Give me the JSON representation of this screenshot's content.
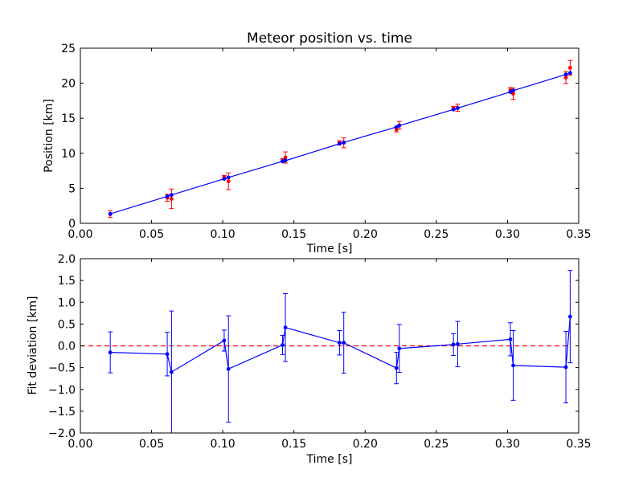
{
  "colors": {
    "data_points": "#ff0000",
    "fit_line": "#0000ff",
    "zero_line": "#ff0000",
    "axes": "#000000"
  },
  "chart_data": [
    {
      "type": "scatter",
      "title": "Meteor position vs. time",
      "xlabel": "Time [s]",
      "ylabel": "Position [km]",
      "xlim": [
        0.0,
        0.35
      ],
      "ylim": [
        0,
        25
      ],
      "xticks": [
        "0.00",
        "0.05",
        "0.10",
        "0.15",
        "0.20",
        "0.25",
        "0.30",
        "0.35"
      ],
      "yticks": [
        "0",
        "5",
        "10",
        "15",
        "20",
        "25"
      ],
      "grid": false,
      "series": [
        {
          "style": "points-with-errorbars",
          "points": [
            {
              "x": 0.021,
              "y": 1.3,
              "err": 0.47
            },
            {
              "x": 0.061,
              "y": 3.65,
              "err": 0.5
            },
            {
              "x": 0.064,
              "y": 3.5,
              "err": 1.4
            },
            {
              "x": 0.101,
              "y": 6.6,
              "err": 0.24
            },
            {
              "x": 0.104,
              "y": 6.0,
              "err": 1.2
            },
            {
              "x": 0.142,
              "y": 9.0,
              "err": 0.22
            },
            {
              "x": 0.144,
              "y": 9.4,
              "err": 0.8
            },
            {
              "x": 0.182,
              "y": 11.5,
              "err": 0.3
            },
            {
              "x": 0.185,
              "y": 11.5,
              "err": 0.7
            },
            {
              "x": 0.222,
              "y": 13.4,
              "err": 0.35
            },
            {
              "x": 0.224,
              "y": 14.0,
              "err": 0.55
            },
            {
              "x": 0.262,
              "y": 16.45,
              "err": 0.25
            },
            {
              "x": 0.265,
              "y": 16.5,
              "err": 0.52
            },
            {
              "x": 0.302,
              "y": 19.0,
              "err": 0.38
            },
            {
              "x": 0.304,
              "y": 18.5,
              "err": 0.8
            },
            {
              "x": 0.341,
              "y": 20.8,
              "err": 0.85
            },
            {
              "x": 0.344,
              "y": 22.2,
              "err": 1.05
            }
          ]
        },
        {
          "style": "line-with-markers",
          "points": [
            {
              "x": 0.021,
              "y": 1.35
            },
            {
              "x": 0.061,
              "y": 3.85
            },
            {
              "x": 0.064,
              "y": 4.05
            },
            {
              "x": 0.101,
              "y": 6.35
            },
            {
              "x": 0.104,
              "y": 6.55
            },
            {
              "x": 0.142,
              "y": 8.85
            },
            {
              "x": 0.144,
              "y": 8.95
            },
            {
              "x": 0.182,
              "y": 11.35
            },
            {
              "x": 0.185,
              "y": 11.55
            },
            {
              "x": 0.222,
              "y": 13.75
            },
            {
              "x": 0.224,
              "y": 13.95
            },
            {
              "x": 0.262,
              "y": 16.25
            },
            {
              "x": 0.265,
              "y": 16.45
            },
            {
              "x": 0.302,
              "y": 18.75
            },
            {
              "x": 0.304,
              "y": 18.95
            },
            {
              "x": 0.341,
              "y": 21.25
            },
            {
              "x": 0.344,
              "y": 21.45
            }
          ]
        }
      ]
    },
    {
      "type": "line",
      "title": "",
      "xlabel": "Time [s]",
      "ylabel": "Fit deviation [km]",
      "xlim": [
        0.0,
        0.35
      ],
      "ylim": [
        -2.0,
        2.0
      ],
      "xticks": [
        "0.00",
        "0.05",
        "0.10",
        "0.15",
        "0.20",
        "0.25",
        "0.30",
        "0.35"
      ],
      "yticks": [
        "−2.0",
        "−1.5",
        "−1.0",
        "−0.5",
        "0.0",
        "0.5",
        "1.0",
        "1.5",
        "2.0"
      ],
      "grid": false,
      "reference_line": {
        "y": 0.0,
        "style": "dashed"
      },
      "series": [
        {
          "style": "line-with-markers-and-errorbars",
          "points": [
            {
              "x": 0.021,
              "y": -0.15,
              "err": 0.47
            },
            {
              "x": 0.061,
              "y": -0.19,
              "err": 0.5
            },
            {
              "x": 0.064,
              "y": -0.6,
              "err": 1.4
            },
            {
              "x": 0.101,
              "y": 0.12,
              "err": 0.24
            },
            {
              "x": 0.104,
              "y": -0.53,
              "err": 1.22
            },
            {
              "x": 0.142,
              "y": 0.02,
              "err": 0.22
            },
            {
              "x": 0.144,
              "y": 0.42,
              "err": 0.78
            },
            {
              "x": 0.182,
              "y": 0.07,
              "err": 0.28
            },
            {
              "x": 0.185,
              "y": 0.07,
              "err": 0.7
            },
            {
              "x": 0.222,
              "y": -0.51,
              "err": 0.36
            },
            {
              "x": 0.224,
              "y": -0.06,
              "err": 0.55
            },
            {
              "x": 0.262,
              "y": 0.03,
              "err": 0.25
            },
            {
              "x": 0.265,
              "y": 0.04,
              "err": 0.52
            },
            {
              "x": 0.302,
              "y": 0.15,
              "err": 0.38
            },
            {
              "x": 0.304,
              "y": -0.45,
              "err": 0.8
            },
            {
              "x": 0.341,
              "y": -0.49,
              "err": 0.82
            },
            {
              "x": 0.344,
              "y": 0.67,
              "err": 1.06
            }
          ]
        }
      ]
    }
  ]
}
